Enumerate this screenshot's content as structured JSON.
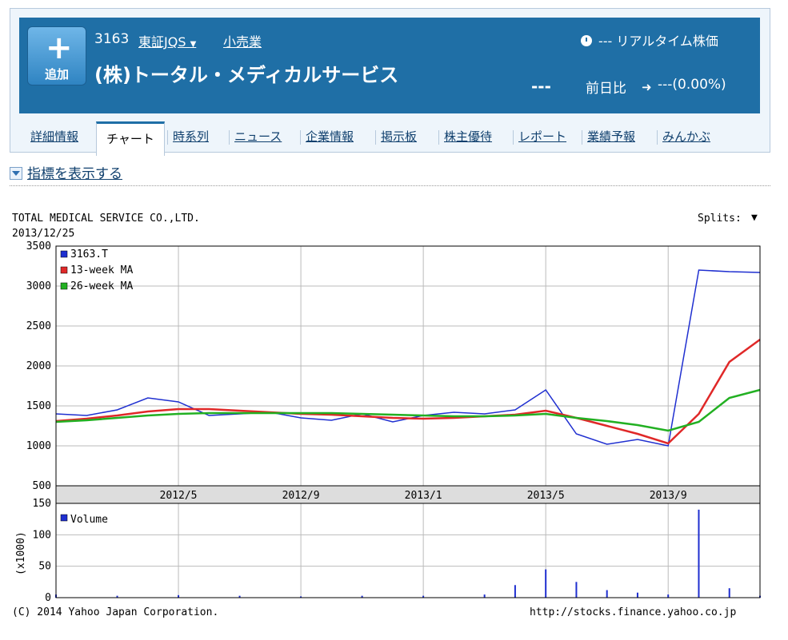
{
  "header": {
    "add_label": "追加",
    "code": "3163",
    "market": "東証JQS",
    "industry": "小売業",
    "company_name": "(株)トータル・メディカルサービス",
    "realtime": "--- リアルタイム株価",
    "price": "---",
    "change_label": "前日比",
    "change_value": "---(0.00%)"
  },
  "tabs": [
    {
      "label": "詳細情報"
    },
    {
      "label": "チャート"
    },
    {
      "label": "時系列"
    },
    {
      "label": "ニュース"
    },
    {
      "label": "企業情報"
    },
    {
      "label": "掲示板"
    },
    {
      "label": "株主優待"
    },
    {
      "label": "レポート"
    },
    {
      "label": "業績予報"
    },
    {
      "label": "みんかぶ"
    }
  ],
  "indicator_toggle": "指標を表示する",
  "colors": {
    "header_blue": "#1f6fa6",
    "price_line": "#1f2fd0",
    "ma13": "#e02828",
    "ma26": "#22b022",
    "volume": "#1f2fd0"
  },
  "chart_data": {
    "type": "line",
    "title": "TOTAL MEDICAL SERVICE CO.,LTD.",
    "date": "2013/12/25",
    "splits_label": "Splits:",
    "copyright": "(C) 2014 Yahoo Japan Corporation.",
    "url": "http://stocks.finance.yahoo.co.jp",
    "x_ticks": [
      "2012/5",
      "2012/9",
      "2013/1",
      "2013/5",
      "2013/9"
    ],
    "x_range": [
      "2012/1",
      "2013/12"
    ],
    "price_ylim": [
      500,
      3500
    ],
    "price_yticks": [
      500,
      1000,
      1500,
      2000,
      2500,
      3000,
      3500
    ],
    "series": [
      {
        "name": "3163.T",
        "x": [
          "2012/1",
          "2012/2",
          "2012/3",
          "2012/4",
          "2012/5",
          "2012/6",
          "2012/7",
          "2012/8",
          "2012/9",
          "2012/10",
          "2012/11",
          "2012/12",
          "2013/1",
          "2013/2",
          "2013/3",
          "2013/4",
          "2013/5",
          "2013/6",
          "2013/7",
          "2013/8",
          "2013/9",
          "2013/10",
          "2013/11",
          "2013/12"
        ],
        "values": [
          1400,
          1380,
          1450,
          1600,
          1550,
          1380,
          1400,
          1420,
          1350,
          1320,
          1400,
          1300,
          1380,
          1420,
          1400,
          1450,
          1700,
          1150,
          1020,
          1080,
          1000,
          3200,
          3180,
          3170
        ]
      },
      {
        "name": "13-week MA",
        "x": [
          "2012/1",
          "2012/2",
          "2012/3",
          "2012/4",
          "2012/5",
          "2012/6",
          "2012/7",
          "2012/8",
          "2012/9",
          "2012/10",
          "2012/11",
          "2012/12",
          "2013/1",
          "2013/2",
          "2013/3",
          "2013/4",
          "2013/5",
          "2013/6",
          "2013/7",
          "2013/8",
          "2013/9",
          "2013/10",
          "2013/11",
          "2013/12"
        ],
        "values": [
          1310,
          1340,
          1380,
          1430,
          1460,
          1460,
          1440,
          1420,
          1400,
          1390,
          1370,
          1350,
          1340,
          1350,
          1370,
          1390,
          1440,
          1350,
          1250,
          1150,
          1030,
          1400,
          2050,
          2330
        ]
      },
      {
        "name": "26-week MA",
        "x": [
          "2012/1",
          "2012/2",
          "2012/3",
          "2012/4",
          "2012/5",
          "2012/6",
          "2012/7",
          "2012/8",
          "2012/9",
          "2012/10",
          "2012/11",
          "2012/12",
          "2013/1",
          "2013/2",
          "2013/3",
          "2013/4",
          "2013/5",
          "2013/6",
          "2013/7",
          "2013/8",
          "2013/9",
          "2013/10",
          "2013/11",
          "2013/12"
        ],
        "values": [
          1300,
          1320,
          1350,
          1380,
          1400,
          1410,
          1410,
          1410,
          1410,
          1410,
          1400,
          1390,
          1380,
          1370,
          1370,
          1380,
          1400,
          1350,
          1310,
          1260,
          1190,
          1300,
          1600,
          1700
        ]
      }
    ],
    "volume": {
      "name": "Volume",
      "ylabel": "(x1000)",
      "ylim": [
        0,
        150
      ],
      "yticks": [
        0,
        50,
        100,
        150
      ],
      "x": [
        "2012/1",
        "2012/3",
        "2012/5",
        "2012/7",
        "2012/9",
        "2012/11",
        "2013/1",
        "2013/3",
        "2013/4",
        "2013/5",
        "2013/6",
        "2013/7",
        "2013/8",
        "2013/9",
        "2013/10",
        "2013/11",
        "2013/12"
      ],
      "values": [
        5,
        3,
        4,
        3,
        2,
        3,
        3,
        5,
        20,
        45,
        25,
        12,
        8,
        5,
        140,
        15,
        3
      ]
    }
  }
}
